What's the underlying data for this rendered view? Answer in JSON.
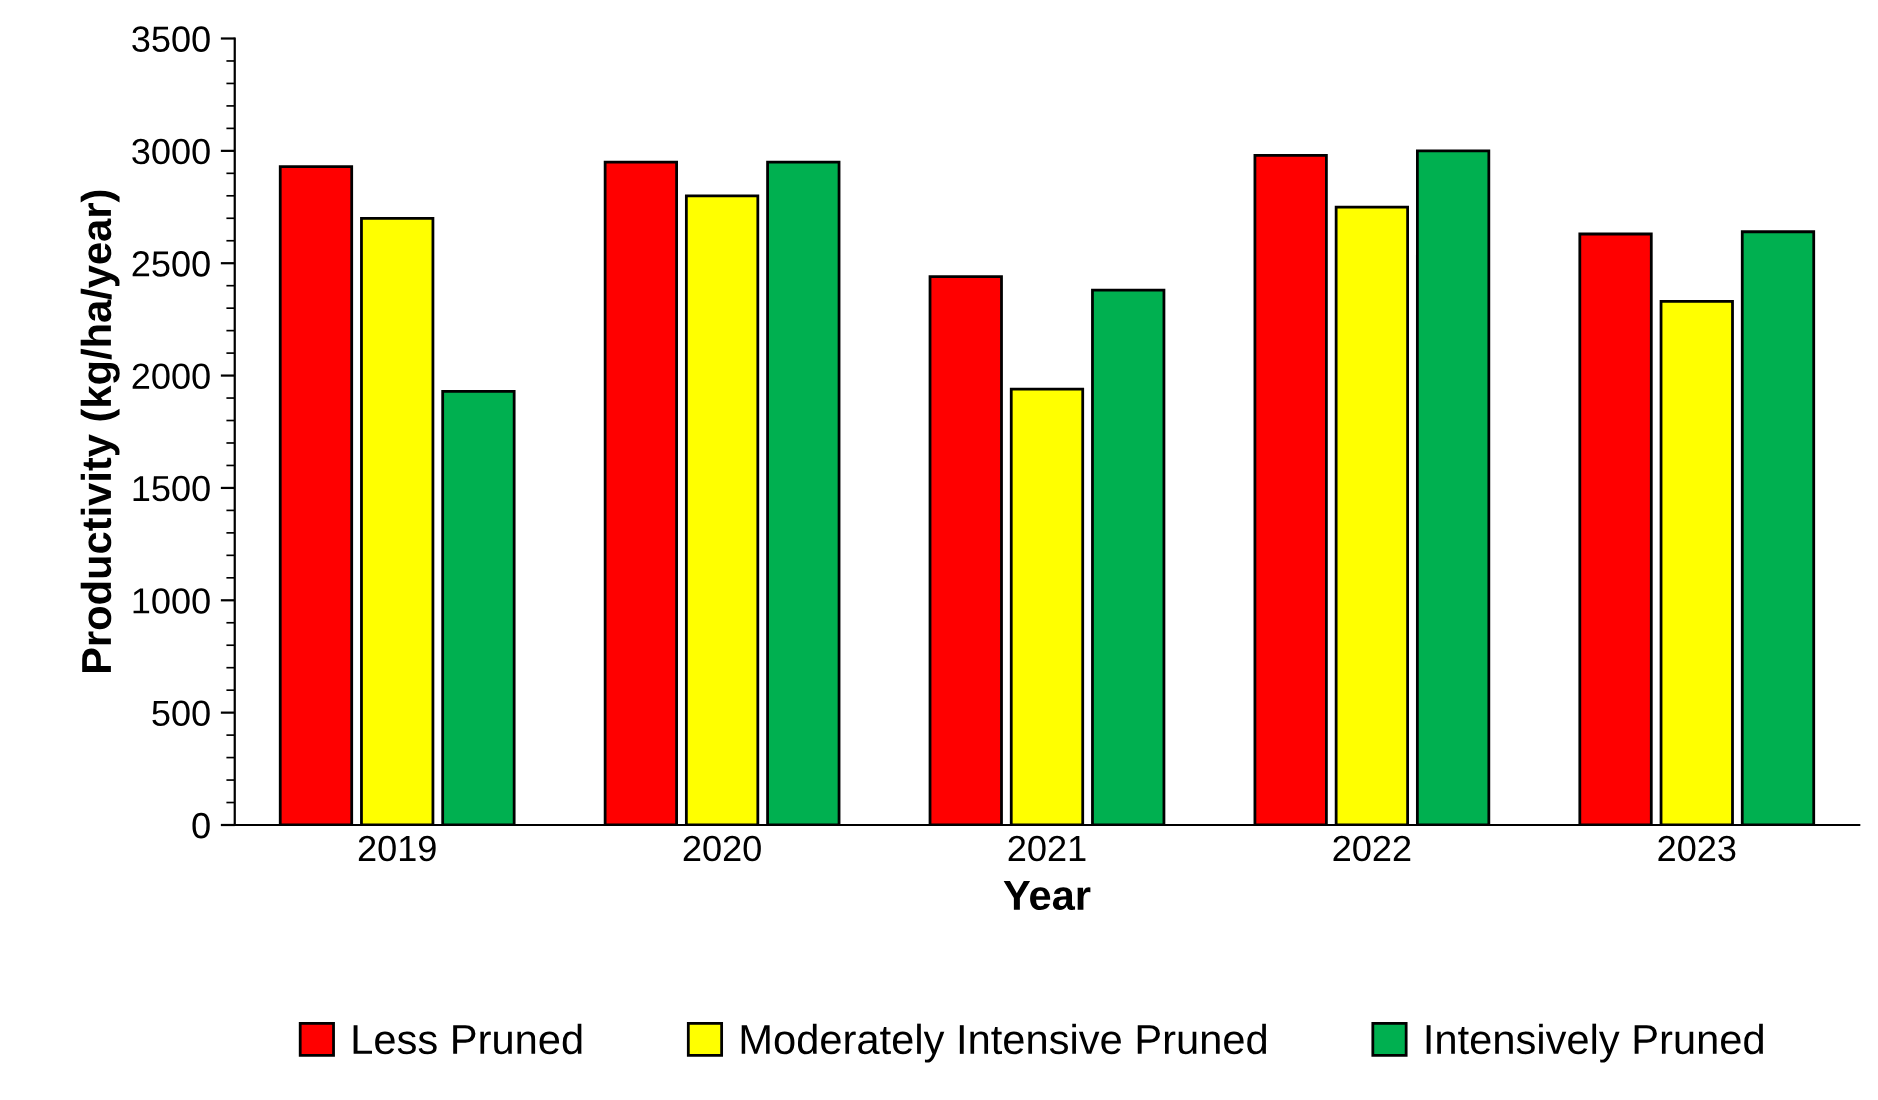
{
  "chart_data": {
    "type": "bar",
    "xlabel": "Year",
    "ylabel": "Productivity (kg/ha/year)",
    "categories": [
      "2019",
      "2020",
      "2021",
      "2022",
      "2023"
    ],
    "series": [
      {
        "name": "Less Pruned",
        "color": "#ff0000",
        "values": [
          2930,
          2950,
          2440,
          2980,
          2630
        ]
      },
      {
        "name": "Moderately Intensive Pruned",
        "color": "#ffff00",
        "values": [
          2700,
          2800,
          1940,
          2750,
          2330
        ]
      },
      {
        "name": "Intensively Pruned",
        "color": "#00b050",
        "values": [
          1930,
          2950,
          2380,
          3000,
          2640
        ]
      }
    ],
    "ylim": [
      0,
      3500
    ],
    "yticks": [
      0,
      500,
      1000,
      1500,
      2000,
      2500,
      3000,
      3500
    ],
    "grid": false,
    "legend": "bottom"
  }
}
